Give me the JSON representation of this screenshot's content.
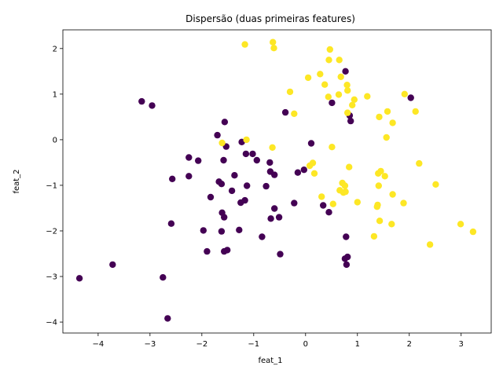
{
  "chart_data": {
    "type": "scatter",
    "title": "Dispersão (duas primeiras features)",
    "xlabel": "feat_1",
    "ylabel": "feat_2",
    "xlim": [
      -4.68,
      3.58
    ],
    "ylim": [
      -4.24,
      2.41
    ],
    "xticks": [
      -4,
      -3,
      -2,
      -1,
      0,
      1,
      2,
      3
    ],
    "yticks": [
      -4,
      -3,
      -2,
      -1,
      0,
      1,
      2
    ],
    "grid": false,
    "legend": "none",
    "colors": {
      "class_0": "#440154",
      "class_1": "#fde725",
      "axis": "#000000",
      "background": "#ffffff"
    },
    "series": [
      {
        "color": "#440154",
        "points": [
          [
            -4.36,
            -3.04
          ],
          [
            -3.72,
            -2.74
          ],
          [
            -3.16,
            0.84
          ],
          [
            -2.96,
            0.75
          ],
          [
            -2.75,
            -3.02
          ],
          [
            -2.66,
            -3.92
          ],
          [
            -2.59,
            -1.84
          ],
          [
            -2.57,
            -0.86
          ],
          [
            -2.25,
            -0.39
          ],
          [
            -2.25,
            -0.8
          ],
          [
            -2.07,
            -0.46
          ],
          [
            -1.97,
            -1.99
          ],
          [
            -1.9,
            -2.45
          ],
          [
            -1.83,
            -1.26
          ],
          [
            -1.7,
            0.1
          ],
          [
            -1.67,
            -0.92
          ],
          [
            -1.62,
            -0.97
          ],
          [
            -1.62,
            -2.01
          ],
          [
            -1.61,
            -1.6
          ],
          [
            -1.58,
            -0.45
          ],
          [
            -1.57,
            -2.45
          ],
          [
            -1.57,
            -1.7
          ],
          [
            -1.56,
            0.39
          ],
          [
            -1.53,
            -0.15
          ],
          [
            -1.51,
            -2.42
          ],
          [
            -1.42,
            -1.12
          ],
          [
            -1.37,
            -0.78
          ],
          [
            -1.28,
            -1.98
          ],
          [
            -1.25,
            -1.38
          ],
          [
            -1.23,
            -0.05
          ],
          [
            -1.17,
            -1.33
          ],
          [
            -1.15,
            -0.31
          ],
          [
            -1.13,
            -1.01
          ],
          [
            -1.02,
            -0.31
          ],
          [
            -0.94,
            -0.45
          ],
          [
            -0.84,
            -2.13
          ],
          [
            -0.76,
            -1.02
          ],
          [
            -0.69,
            -0.5
          ],
          [
            -0.68,
            -0.7
          ],
          [
            -0.67,
            -1.73
          ],
          [
            -0.6,
            -1.51
          ],
          [
            -0.6,
            -0.77
          ],
          [
            -0.51,
            -1.7
          ],
          [
            -0.49,
            -2.51
          ],
          [
            -0.39,
            0.6
          ],
          [
            -0.22,
            -1.39
          ],
          [
            -0.15,
            -0.72
          ],
          [
            -0.03,
            -0.66
          ],
          [
            0.11,
            -0.08
          ],
          [
            0.34,
            -1.44
          ],
          [
            0.45,
            -1.59
          ],
          [
            0.51,
            0.81
          ],
          [
            0.76,
            -2.61
          ],
          [
            0.77,
            1.5
          ],
          [
            0.78,
            -2.13
          ],
          [
            0.79,
            -2.74
          ],
          [
            0.81,
            -2.57
          ],
          [
            0.85,
            0.53
          ],
          [
            0.87,
            0.41
          ],
          [
            2.03,
            0.92
          ]
        ]
      },
      {
        "color": "#fde725",
        "points": [
          [
            -1.17,
            2.09
          ],
          [
            -1.61,
            -0.07
          ],
          [
            -1.14,
            0.0
          ],
          [
            -0.63,
            2.14
          ],
          [
            -0.61,
            2.01
          ],
          [
            -0.64,
            -0.17
          ],
          [
            -0.3,
            1.05
          ],
          [
            -0.22,
            0.57
          ],
          [
            0.05,
            1.36
          ],
          [
            0.08,
            -0.57
          ],
          [
            0.14,
            -0.51
          ],
          [
            0.17,
            -0.74
          ],
          [
            0.28,
            1.44
          ],
          [
            0.31,
            -1.25
          ],
          [
            0.37,
            1.21
          ],
          [
            0.44,
            0.94
          ],
          [
            0.45,
            1.75
          ],
          [
            0.47,
            1.98
          ],
          [
            0.51,
            -0.16
          ],
          [
            0.53,
            -1.41
          ],
          [
            0.64,
            0.99
          ],
          [
            0.65,
            1.75
          ],
          [
            0.66,
            -1.11
          ],
          [
            0.68,
            1.38
          ],
          [
            0.71,
            -0.95
          ],
          [
            0.73,
            -1.16
          ],
          [
            0.76,
            -1.01
          ],
          [
            0.77,
            -1.14
          ],
          [
            0.8,
            1.2
          ],
          [
            0.81,
            1.08
          ],
          [
            0.81,
            0.59
          ],
          [
            0.84,
            -0.6
          ],
          [
            0.9,
            0.76
          ],
          [
            0.94,
            0.88
          ],
          [
            1.0,
            -1.37
          ],
          [
            1.19,
            0.95
          ],
          [
            1.32,
            -2.12
          ],
          [
            1.38,
            -1.47
          ],
          [
            1.39,
            -1.43
          ],
          [
            1.4,
            -0.74
          ],
          [
            1.41,
            -1.01
          ],
          [
            1.42,
            0.5
          ],
          [
            1.43,
            -1.78
          ],
          [
            1.45,
            -0.69
          ],
          [
            1.53,
            -0.8
          ],
          [
            1.56,
            0.05
          ],
          [
            1.58,
            0.62
          ],
          [
            1.66,
            -1.85
          ],
          [
            1.68,
            0.37
          ],
          [
            1.68,
            -1.2
          ],
          [
            1.89,
            -1.39
          ],
          [
            1.91,
            1.0
          ],
          [
            2.12,
            0.62
          ],
          [
            2.19,
            -0.52
          ],
          [
            2.4,
            -2.3
          ],
          [
            2.51,
            -0.98
          ],
          [
            2.99,
            -1.85
          ],
          [
            3.23,
            -2.02
          ]
        ]
      }
    ]
  }
}
